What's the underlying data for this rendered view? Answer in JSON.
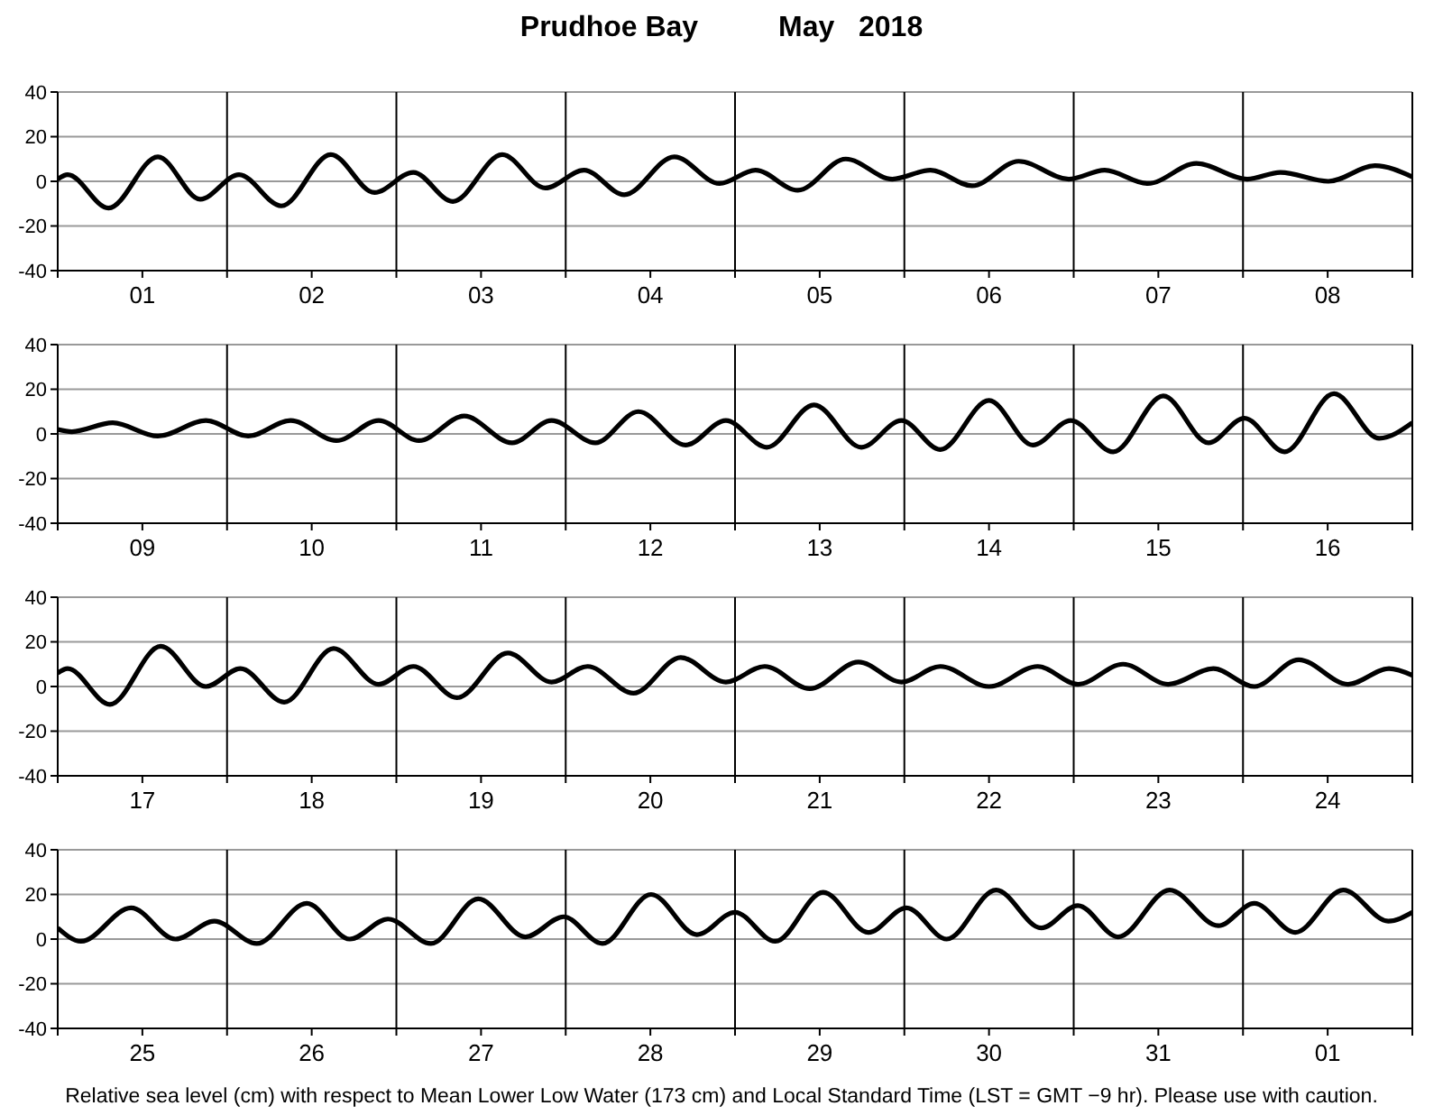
{
  "chart_data": [
    {
      "type": "line",
      "title": "Prudhoe Bay          May   2018",
      "xlim": [
        "2018-05-01",
        "2018-05-09"
      ],
      "ylim": [
        -40,
        40
      ],
      "yticks": [
        -40,
        -20,
        0,
        20,
        40
      ],
      "grid": true,
      "xticks": [
        {
          "value": "2018-05-01",
          "label": null
        },
        {
          "value": "2018-05-01T12:00",
          "label": "01"
        },
        {
          "value": "2018-05-02",
          "label": null
        },
        {
          "value": "2018-05-02T12:00",
          "label": "02"
        },
        {
          "value": "2018-05-03",
          "label": null
        },
        {
          "value": "2018-05-03T12:00",
          "label": "03"
        },
        {
          "value": "2018-05-04",
          "label": null
        },
        {
          "value": "2018-05-04T12:00",
          "label": "04"
        },
        {
          "value": "2018-05-05",
          "label": null
        },
        {
          "value": "2018-05-05T12:00",
          "label": "05"
        },
        {
          "value": "2018-05-06",
          "label": null
        },
        {
          "value": "2018-05-06T12:00",
          "label": "06"
        },
        {
          "value": "2018-05-07",
          "label": null
        },
        {
          "value": "2018-05-07T12:00",
          "label": "07"
        },
        {
          "value": "2018-05-08",
          "label": null
        },
        {
          "value": "2018-05-08T12:00",
          "label": "08"
        },
        {
          "value": "2018-05-09",
          "label": null
        }
      ],
      "series": [
        {
          "color": "#000000",
          "x": [
            "2018-05-01T00:00",
            "2018-05-01T01:24",
            "2018-05-01T07:12",
            "2018-05-01T14:12",
            "2018-05-01T20:12",
            "2018-05-02T01:42",
            "2018-05-02T07:42",
            "2018-05-02T14:42",
            "2018-05-02T20:54",
            "2018-05-03T02:24",
            "2018-05-03T08:00",
            "2018-05-03T15:00",
            "2018-05-03T21:06",
            "2018-05-04T02:36",
            "2018-05-04T08:18",
            "2018-05-04T15:24",
            "2018-05-04T21:48",
            "2018-05-05T02:54",
            "2018-05-05T08:54",
            "2018-05-05T15:42",
            "2018-05-05T22:18",
            "2018-05-06T03:42",
            "2018-05-06T09:36",
            "2018-05-06T16:12",
            "2018-05-06T23:18",
            "2018-05-07T04:24",
            "2018-05-07T10:30",
            "2018-05-07T17:24",
            "2018-05-08T00:36",
            "2018-05-08T05:18",
            "2018-05-08T12:06",
            "2018-05-08T18:42",
            "2018-05-09T00:00"
          ],
          "values": [
            1,
            3,
            -12,
            11,
            -8,
            3,
            -11,
            12,
            -5,
            4,
            -9,
            12,
            -3,
            5,
            -6,
            11,
            -1,
            5,
            -4,
            10,
            1,
            5,
            -2,
            9,
            1,
            5,
            -1,
            8,
            1,
            4,
            0,
            7,
            2
          ]
        }
      ]
    },
    {
      "type": "line",
      "xlim": [
        "2018-05-09",
        "2018-05-17"
      ],
      "ylim": [
        -40,
        40
      ],
      "yticks": [
        -40,
        -20,
        0,
        20,
        40
      ],
      "grid": true,
      "xticks": [
        {
          "value": "2018-05-09",
          "label": null
        },
        {
          "value": "2018-05-09T12:00",
          "label": "09"
        },
        {
          "value": "2018-05-10",
          "label": null
        },
        {
          "value": "2018-05-10T12:00",
          "label": "10"
        },
        {
          "value": "2018-05-11",
          "label": null
        },
        {
          "value": "2018-05-11T12:00",
          "label": "11"
        },
        {
          "value": "2018-05-12",
          "label": null
        },
        {
          "value": "2018-05-12T12:00",
          "label": "12"
        },
        {
          "value": "2018-05-13",
          "label": null
        },
        {
          "value": "2018-05-13T12:00",
          "label": "13"
        },
        {
          "value": "2018-05-14",
          "label": null
        },
        {
          "value": "2018-05-14T12:00",
          "label": "14"
        },
        {
          "value": "2018-05-15",
          "label": null
        },
        {
          "value": "2018-05-15T12:00",
          "label": "15"
        },
        {
          "value": "2018-05-16",
          "label": null
        },
        {
          "value": "2018-05-16T12:00",
          "label": "16"
        },
        {
          "value": "2018-05-17",
          "label": null
        }
      ],
      "series": [
        {
          "color": "#000000",
          "x": [
            "2018-05-09T00:00",
            "2018-05-09T02:00",
            "2018-05-09T07:48",
            "2018-05-09T14:12",
            "2018-05-09T21:00",
            "2018-05-10T03:00",
            "2018-05-10T09:00",
            "2018-05-10T15:30",
            "2018-05-10T21:30",
            "2018-05-11T03:12",
            "2018-05-11T09:36",
            "2018-05-11T16:24",
            "2018-05-11T22:00",
            "2018-05-12T04:12",
            "2018-05-12T10:18",
            "2018-05-12T17:00",
            "2018-05-12T22:42",
            "2018-05-13T04:30",
            "2018-05-13T11:12",
            "2018-05-13T17:54",
            "2018-05-13T23:36",
            "2018-05-14T05:06",
            "2018-05-14T12:00",
            "2018-05-14T18:12",
            "2018-05-14T23:36",
            "2018-05-15T05:36",
            "2018-05-15T12:42",
            "2018-05-15T19:06",
            "2018-05-16T00:12",
            "2018-05-16T05:54",
            "2018-05-16T12:54",
            "2018-05-16T19:18",
            "2018-05-17T00:00"
          ],
          "values": [
            2,
            1,
            5,
            -1,
            6,
            -1,
            6,
            -3,
            6,
            -3,
            8,
            -4,
            6,
            -4,
            10,
            -5,
            6,
            -6,
            13,
            -6,
            6,
            -7,
            15,
            -5,
            6,
            -8,
            17,
            -4,
            7,
            -8,
            18,
            -2,
            5
          ]
        }
      ]
    },
    {
      "type": "line",
      "xlim": [
        "2018-05-17",
        "2018-05-25"
      ],
      "ylim": [
        -40,
        40
      ],
      "yticks": [
        -40,
        -20,
        0,
        20,
        40
      ],
      "grid": true,
      "xticks": [
        {
          "value": "2018-05-17",
          "label": null
        },
        {
          "value": "2018-05-17T12:00",
          "label": "17"
        },
        {
          "value": "2018-05-18",
          "label": null
        },
        {
          "value": "2018-05-18T12:00",
          "label": "18"
        },
        {
          "value": "2018-05-19",
          "label": null
        },
        {
          "value": "2018-05-19T12:00",
          "label": "19"
        },
        {
          "value": "2018-05-20",
          "label": null
        },
        {
          "value": "2018-05-20T12:00",
          "label": "20"
        },
        {
          "value": "2018-05-21",
          "label": null
        },
        {
          "value": "2018-05-21T12:00",
          "label": "21"
        },
        {
          "value": "2018-05-22",
          "label": null
        },
        {
          "value": "2018-05-22T12:00",
          "label": "22"
        },
        {
          "value": "2018-05-23",
          "label": null
        },
        {
          "value": "2018-05-23T12:00",
          "label": "23"
        },
        {
          "value": "2018-05-24",
          "label": null
        },
        {
          "value": "2018-05-24T12:00",
          "label": "24"
        },
        {
          "value": "2018-05-25",
          "label": null
        }
      ],
      "series": [
        {
          "color": "#000000",
          "x": [
            "2018-05-17T00:00",
            "2018-05-17T01:24",
            "2018-05-17T07:24",
            "2018-05-17T14:36",
            "2018-05-17T21:00",
            "2018-05-18T01:54",
            "2018-05-18T08:06",
            "2018-05-18T15:06",
            "2018-05-18T21:30",
            "2018-05-19T02:24",
            "2018-05-19T08:36",
            "2018-05-19T15:48",
            "2018-05-19T22:00",
            "2018-05-20T03:06",
            "2018-05-20T09:36",
            "2018-05-20T16:18",
            "2018-05-20T22:42",
            "2018-05-21T04:12",
            "2018-05-21T10:36",
            "2018-05-21T17:30",
            "2018-05-21T23:36",
            "2018-05-22T05:06",
            "2018-05-22T12:00",
            "2018-05-22T18:54",
            "2018-05-23T00:36",
            "2018-05-23T07:00",
            "2018-05-23T13:24",
            "2018-05-23T19:48",
            "2018-05-24T01:36",
            "2018-05-24T07:54",
            "2018-05-24T14:54",
            "2018-05-24T20:42",
            "2018-05-25T00:00"
          ],
          "values": [
            6,
            8,
            -8,
            18,
            0,
            8,
            -7,
            17,
            1,
            9,
            -5,
            15,
            2,
            9,
            -3,
            13,
            2,
            9,
            -1,
            11,
            2,
            9,
            0,
            9,
            1,
            10,
            1,
            8,
            0,
            12,
            1,
            8,
            5
          ]
        }
      ]
    },
    {
      "type": "line",
      "xlim": [
        "2018-05-25",
        "2018-06-02"
      ],
      "ylim": [
        -40,
        40
      ],
      "yticks": [
        -40,
        -20,
        0,
        20,
        40
      ],
      "grid": true,
      "xticks": [
        {
          "value": "2018-05-25",
          "label": null
        },
        {
          "value": "2018-05-25T12:00",
          "label": "25"
        },
        {
          "value": "2018-05-26",
          "label": null
        },
        {
          "value": "2018-05-26T12:00",
          "label": "26"
        },
        {
          "value": "2018-05-27",
          "label": null
        },
        {
          "value": "2018-05-27T12:00",
          "label": "27"
        },
        {
          "value": "2018-05-28",
          "label": null
        },
        {
          "value": "2018-05-28T12:00",
          "label": "28"
        },
        {
          "value": "2018-05-29",
          "label": null
        },
        {
          "value": "2018-05-29T12:00",
          "label": "29"
        },
        {
          "value": "2018-05-30",
          "label": null
        },
        {
          "value": "2018-05-30T12:00",
          "label": "30"
        },
        {
          "value": "2018-05-31",
          "label": null
        },
        {
          "value": "2018-05-31T12:00",
          "label": "31"
        },
        {
          "value": "2018-06-01",
          "label": null
        },
        {
          "value": "2018-06-01T12:00",
          "label": "01"
        },
        {
          "value": "2018-06-02",
          "label": null
        }
      ],
      "annotations": [
        "Relative sea level (cm) with respect to Mean Lower Low Water (173 cm) and Local Standard Time (LST = GMT −9 hr). Please use with caution."
      ],
      "series": [
        {
          "color": "#000000",
          "x": [
            "2018-05-25T00:00",
            "2018-05-25T03:18",
            "2018-05-25T10:24",
            "2018-05-25T16:42",
            "2018-05-25T22:12",
            "2018-05-26T04:12",
            "2018-05-26T11:18",
            "2018-05-26T17:24",
            "2018-05-26T22:48",
            "2018-05-27T04:54",
            "2018-05-27T11:36",
            "2018-05-27T18:18",
            "2018-05-27T23:42",
            "2018-05-28T05:12",
            "2018-05-28T12:06",
            "2018-05-28T18:36",
            "2018-05-29T00:00",
            "2018-05-29T05:42",
            "2018-05-29T12:30",
            "2018-05-29T18:54",
            "2018-05-30T00:18",
            "2018-05-30T06:00",
            "2018-05-30T13:00",
            "2018-05-30T19:24",
            "2018-05-31T00:36",
            "2018-05-31T06:18",
            "2018-05-31T13:36",
            "2018-05-31T20:30",
            "2018-06-01T01:36",
            "2018-06-01T07:24",
            "2018-06-01T14:12",
            "2018-06-01T20:36",
            "2018-06-02T00:00"
          ],
          "values": [
            5,
            -1,
            14,
            0,
            8,
            -2,
            16,
            0,
            9,
            -2,
            18,
            1,
            10,
            -2,
            20,
            2,
            12,
            -1,
            21,
            3,
            14,
            0,
            22,
            5,
            15,
            1,
            22,
            6,
            16,
            3,
            22,
            8,
            12
          ]
        }
      ]
    }
  ]
}
